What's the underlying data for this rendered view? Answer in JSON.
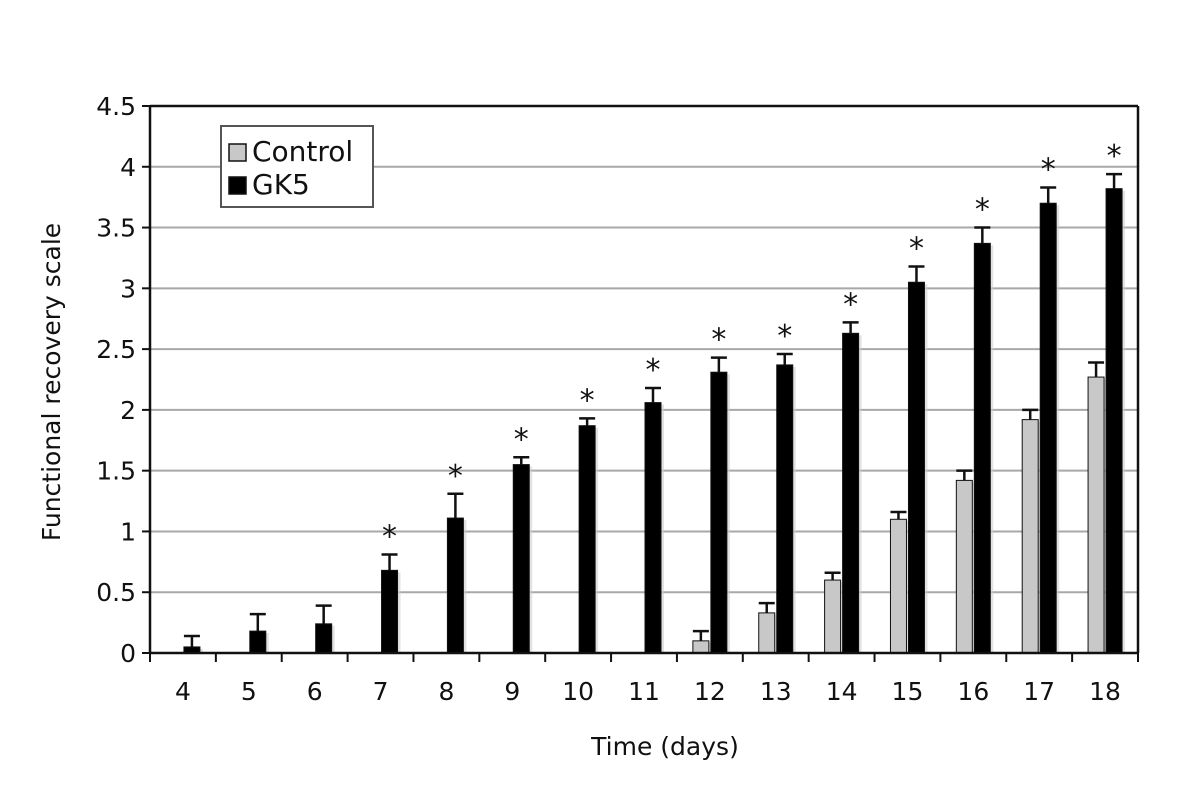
{
  "chart_data": {
    "type": "bar",
    "xlabel": "Time (days)",
    "ylabel": "Functional recovery scale",
    "ylim": [
      0,
      4.5
    ],
    "yticks": [
      "0",
      "0.5",
      "1",
      "1.5",
      "2",
      "2.5",
      "3",
      "3.5",
      "4",
      "4.5"
    ],
    "ytick_values": [
      0,
      0.5,
      1,
      1.5,
      2,
      2.5,
      3,
      3.5,
      4,
      4.5
    ],
    "categories": [
      "4",
      "5",
      "6",
      "7",
      "8",
      "9",
      "10",
      "11",
      "12",
      "13",
      "14",
      "15",
      "16",
      "17",
      "18"
    ],
    "grid": true,
    "legend_position": "top-left",
    "significance_marker": "*",
    "significant": [
      false,
      false,
      false,
      true,
      true,
      true,
      true,
      true,
      true,
      true,
      true,
      true,
      true,
      true,
      true
    ],
    "series": [
      {
        "name": "Control",
        "color": "#c8c8c8",
        "values": [
          0,
          0,
          0,
          0,
          0,
          0,
          0,
          0,
          0.1,
          0.33,
          0.6,
          1.1,
          1.42,
          1.92,
          2.27
        ],
        "errors": [
          0,
          0,
          0,
          0,
          0,
          0,
          0,
          0,
          0.08,
          0.08,
          0.06,
          0.06,
          0.08,
          0.08,
          0.12
        ]
      },
      {
        "name": "GK5",
        "color": "#000000",
        "values": [
          0.05,
          0.18,
          0.24,
          0.68,
          1.11,
          1.55,
          1.87,
          2.06,
          2.31,
          2.37,
          2.63,
          3.05,
          3.37,
          3.7,
          3.82
        ],
        "errors": [
          0.09,
          0.14,
          0.15,
          0.13,
          0.2,
          0.06,
          0.06,
          0.12,
          0.12,
          0.09,
          0.09,
          0.13,
          0.13,
          0.13,
          0.12
        ]
      }
    ]
  }
}
